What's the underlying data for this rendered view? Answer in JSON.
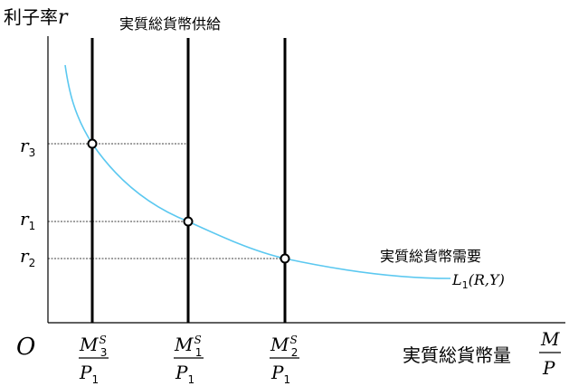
{
  "labels": {
    "y_axis": "利子率",
    "y_axis_var": "r",
    "origin": "O",
    "supply": "実質総貨幣供給",
    "demand": "実質総貨幣需要",
    "x_axis": "実質総貨幣量",
    "x_num": "M",
    "x_den": "P"
  },
  "demand_fn": {
    "base": "L",
    "sub": "1",
    "args": "(R,Y)"
  },
  "ticks_y": [
    {
      "base": "r",
      "sub": "3"
    },
    {
      "base": "r",
      "sub": "1"
    },
    {
      "base": "r",
      "sub": "2"
    }
  ],
  "ticks_x": [
    {
      "num": "M",
      "sub": "3",
      "sup": "S",
      "den": "P",
      "den_sub": "1"
    },
    {
      "num": "M",
      "sub": "1",
      "sup": "S",
      "den": "P",
      "den_sub": "1"
    },
    {
      "num": "M",
      "sub": "2",
      "sup": "S",
      "den": "P",
      "den_sub": "1"
    }
  ],
  "colors": {
    "demand_curve": "#5bc8f0",
    "lines": "#000000"
  }
}
